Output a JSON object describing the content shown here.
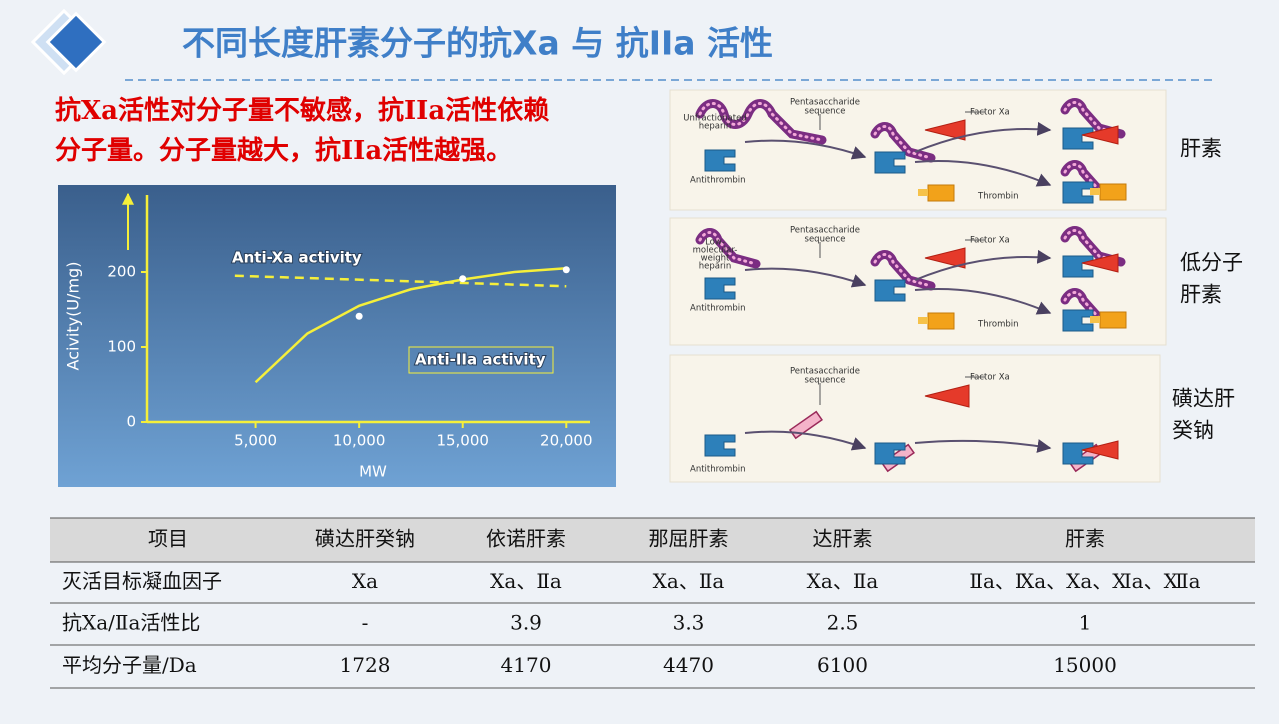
{
  "header": {
    "title": "不同长度肝素分子的抗Xa 与 抗IIa 活性"
  },
  "note": [
    "抗Xa活性对分子量不敏感，抗IIa活性依赖",
    "分子量。分子量越大，抗IIa活性越强。"
  ],
  "chart_data": {
    "type": "line",
    "xlabel": "MW",
    "ylabel": "Acivity(U/mg)",
    "xlim": [
      0,
      21000
    ],
    "ylim": [
      0,
      300
    ],
    "xticks": [
      {
        "value": 5000,
        "label": "5,000"
      },
      {
        "value": 10000,
        "label": "10,000"
      },
      {
        "value": 15000,
        "label": "15,000"
      },
      {
        "value": 20000,
        "label": "20,000"
      }
    ],
    "yticks": [
      0,
      100,
      200
    ],
    "series": [
      {
        "name": "Anti-Xa activity",
        "color": "#f5ef3a",
        "dashed": true,
        "x": [
          4000,
          20000
        ],
        "values": [
          195,
          181
        ]
      },
      {
        "name": "Anti-IIa activity",
        "color": "#f5ef3a",
        "dashed": false,
        "x": [
          5000,
          7500,
          10000,
          12500,
          15000,
          17500,
          20000
        ],
        "values": [
          53,
          118,
          155,
          177,
          190,
          200,
          205
        ]
      },
      {
        "type": "scatter",
        "color": "#ffffff",
        "x": [
          10000,
          15000,
          20000
        ],
        "values": [
          141,
          191,
          203
        ]
      }
    ]
  },
  "diagrams": [
    {
      "caption": [
        "肝素"
      ],
      "pentasaccharide": [
        "Pentasaccharide",
        "sequence"
      ],
      "heparin": [
        "Unfractionated",
        "heparin"
      ],
      "factor_xa": "Factor Xa",
      "antithrombin": "Antithrombin",
      "thrombin": "Thrombin"
    },
    {
      "caption": [
        "低分子",
        "肝素"
      ],
      "pentasaccharide": [
        "Pentasaccharide",
        "sequence"
      ],
      "heparin": [
        "Low-",
        "molecular-",
        "weight",
        "heparin"
      ],
      "factor_xa": "Factor Xa",
      "antithrombin": "Antithrombin",
      "thrombin": "Thrombin"
    },
    {
      "caption": [
        "磺达肝",
        "癸钠"
      ],
      "pentasaccharide": [
        "Pentasaccharide",
        "sequence"
      ],
      "factor_xa": "Factor Xa",
      "antithrombin": "Antithrombin"
    }
  ],
  "table": {
    "header": [
      "项目",
      "磺达肝癸钠",
      "依诺肝素",
      "那屈肝素",
      "达肝素",
      "肝素"
    ],
    "rows": [
      [
        "灭活目标凝血因子",
        "Ⅹa",
        "Ⅹa、Ⅱa",
        "Ⅹa、Ⅱa",
        "Ⅹa、Ⅱa",
        "Ⅱa、Ⅸa、Ⅹa、Ⅺa、Ⅻa"
      ],
      [
        "抗Ⅹa/Ⅱa活性比",
        "-",
        "3.9",
        "3.3",
        "2.5",
        "1"
      ],
      [
        "平均分子量/Da",
        "1728",
        "4170",
        "4470",
        "6100",
        "15000"
      ]
    ]
  }
}
